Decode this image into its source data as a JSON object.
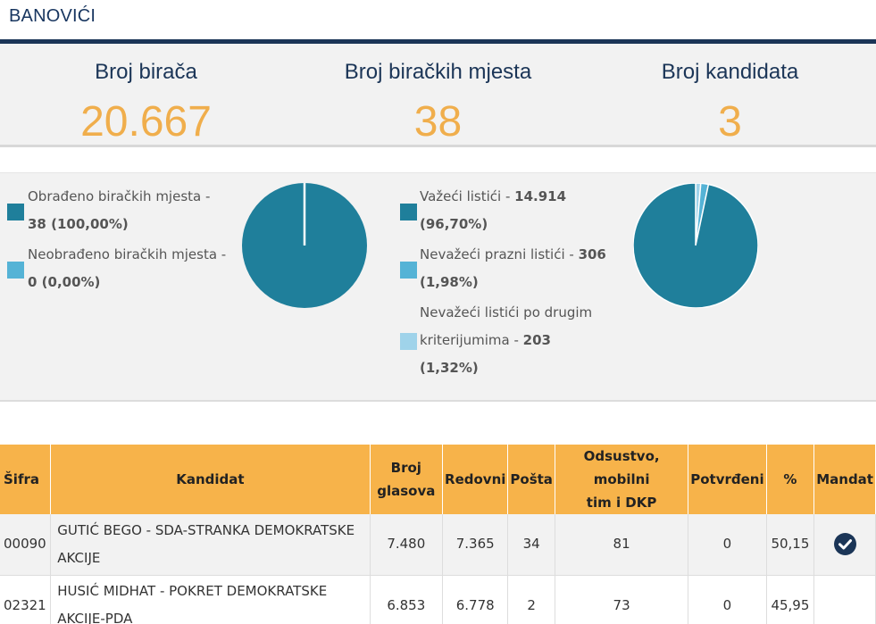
{
  "header": {
    "municipality": "BANOVIĆI"
  },
  "stats": [
    {
      "label": "Broj birača",
      "value": "20.667"
    },
    {
      "label": "Broj biračkih mjesta",
      "value": "38"
    },
    {
      "label": "Broj kandidata",
      "value": "3"
    }
  ],
  "colors": {
    "dark_teal": "#1f7f9b",
    "light_blue": "#55b3d6",
    "pale_blue": "#9fd3ea",
    "orange": "#f7b34a",
    "navy": "#1b3557"
  },
  "processing": {
    "items": [
      {
        "line1": "Obrađeno biračkih mjesta -",
        "value": "38 (100,00%)",
        "fraction": 1.0
      },
      {
        "line1": "Neobrađeno biračkih mjesta -",
        "value": "0 (0,00%)",
        "fraction": 0.0
      }
    ]
  },
  "ballots": {
    "valid": {
      "label": "Važeći listići - ",
      "count": "14.914",
      "pct": "(96,70%)",
      "fraction": 0.967
    },
    "invalid_blank": {
      "label": "Nevažeći prazni listići - ",
      "count": "306",
      "pct": "(1,98%)",
      "fraction": 0.0198
    },
    "invalid_other": {
      "line1": "Nevažeći listići po drugim",
      "label": "kriterijumima - ",
      "count": "203",
      "pct": "(1,32%)",
      "fraction": 0.0132
    }
  },
  "table": {
    "headers": {
      "code": "Šifra",
      "candidate": "Kandidat",
      "votes_1": "Broj",
      "votes_2": "glasova",
      "regular": "Redovni",
      "mail": "Pošta",
      "absent_1": "Odsustvo, mobilni",
      "absent_2": "tim i DKP",
      "confirmed": "Potvrđeni",
      "pct": "%",
      "mandate": "Mandat"
    },
    "rows": [
      {
        "code": "00090",
        "name1": "GUTIĆ BEGO - SDA-STRANKA DEMOKRATSKE",
        "name2": "AKCIJE",
        "votes": "7.480",
        "regular": "7.365",
        "mail": "34",
        "absent": "81",
        "confirmed": "0",
        "pct": "50,15",
        "mandate": true
      },
      {
        "code": "02321",
        "name1": "HUSIĆ MIDHAT - POKRET DEMOKRATSKE",
        "name2": "AKCIJE-PDA",
        "votes": "6.853",
        "regular": "6.778",
        "mail": "2",
        "absent": "73",
        "confirmed": "0",
        "pct": "45,95",
        "mandate": false
      }
    ]
  }
}
